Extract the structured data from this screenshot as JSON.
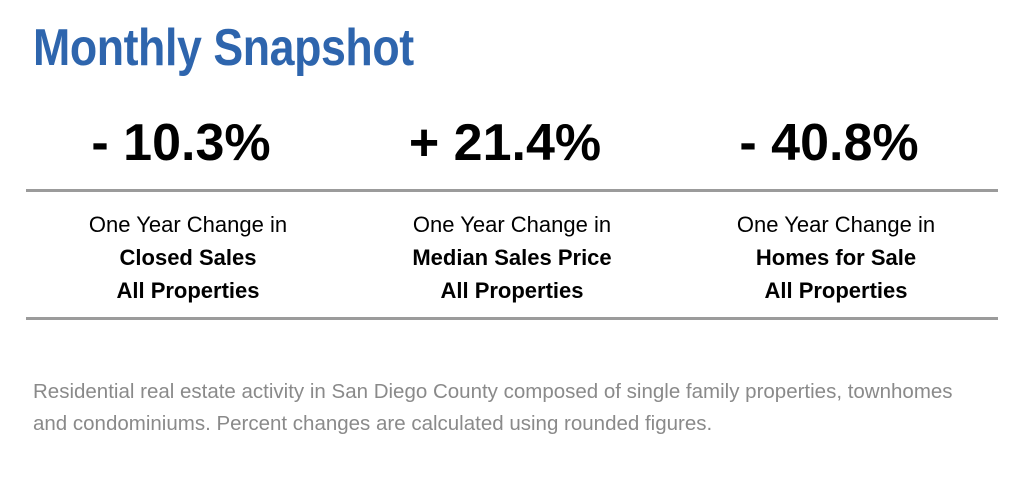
{
  "header": {
    "title": "Monthly Snapshot"
  },
  "stats": [
    {
      "value": "- 10.3%",
      "prefix": "One Year Change in",
      "metric": "Closed Sales",
      "scope": "All Properties"
    },
    {
      "value": "+ 21.4%",
      "prefix": "One Year Change in",
      "metric": "Median Sales Price",
      "scope": "All Properties"
    },
    {
      "value": "- 40.8%",
      "prefix": "One Year Change in",
      "metric": "Homes for Sale",
      "scope": "All Properties"
    }
  ],
  "footnote": {
    "text": "Residential real estate activity in San Diego County composed of single family properties, townhomes and condominiums. Percent changes are calculated using rounded figures."
  },
  "colors": {
    "title": "#2e65ad",
    "rule": "#9b9b9b",
    "footnote": "#8a8a8a"
  }
}
